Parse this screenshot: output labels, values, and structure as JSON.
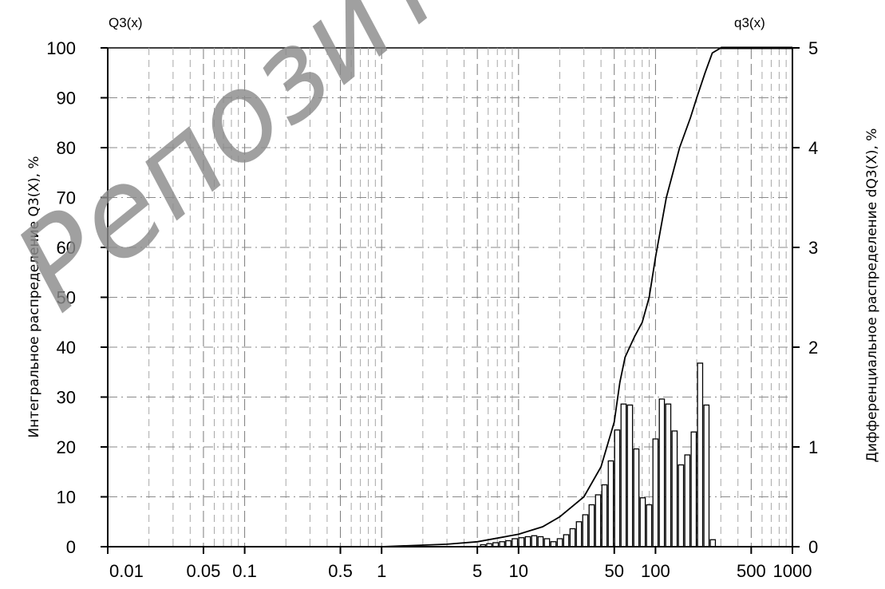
{
  "chart_data": {
    "type": "bar",
    "x_scale": "log",
    "xlim": [
      0.01,
      1000
    ],
    "x_ticks": [
      0.01,
      0.05,
      0.1,
      0.5,
      1,
      5,
      10,
      50,
      100,
      500,
      1000
    ],
    "x_tick_labels": [
      "0.01",
      "0.05",
      "0.1",
      "0.5",
      "1",
      "5",
      "10",
      "50",
      "100",
      "500",
      "1000"
    ],
    "y_left": {
      "label": "Интегральное распределение Q3(X), %",
      "corner_label": "Q3(x)",
      "ylim": [
        0,
        100
      ],
      "ticks": [
        0,
        10,
        20,
        30,
        40,
        50,
        60,
        70,
        80,
        90,
        100
      ]
    },
    "y_right": {
      "label": "Дифференциальное распределение dQ3(X), %",
      "corner_label": "q3(x)",
      "ylim": [
        0,
        5
      ],
      "ticks": [
        0,
        1,
        2,
        3,
        4,
        5
      ]
    },
    "grid": true,
    "series": [
      {
        "type": "line",
        "axis": "left",
        "x": [
          1,
          3,
          5,
          10,
          15,
          20,
          30,
          40,
          50,
          55,
          60,
          70,
          80,
          90,
          100,
          120,
          150,
          180,
          200,
          230,
          260,
          300,
          1000
        ],
        "y": [
          0,
          0.5,
          1,
          2.5,
          4,
          6,
          10,
          16,
          25,
          33,
          38,
          42,
          45,
          50,
          58,
          70,
          80,
          86,
          90,
          95,
          99,
          100,
          100
        ]
      },
      {
        "type": "bar",
        "axis": "right",
        "x": [
          5.5,
          6.1,
          6.8,
          7.6,
          8.4,
          9.4,
          10.5,
          11.7,
          13.0,
          14.5,
          16.1,
          18.0,
          20.0,
          22.3,
          24.8,
          27.6,
          30.7,
          34.2,
          38.1,
          42.4,
          47.2,
          52.5,
          58.5,
          65.1,
          72.5,
          80.7,
          89.8,
          100.0,
          111.3,
          123.9,
          137.9,
          153.5,
          170.9,
          190.2,
          211.7,
          235.7,
          262.3
        ],
        "y": [
          0.02,
          0.03,
          0.04,
          0.05,
          0.06,
          0.08,
          0.09,
          0.1,
          0.11,
          0.1,
          0.08,
          0.05,
          0.08,
          0.12,
          0.18,
          0.25,
          0.32,
          0.42,
          0.52,
          0.62,
          0.86,
          1.17,
          1.43,
          1.42,
          0.98,
          0.49,
          0.42,
          1.08,
          1.48,
          1.43,
          1.16,
          0.82,
          0.92,
          1.15,
          1.84,
          1.42,
          0.07
        ]
      }
    ]
  },
  "watermark": "Репозиторий"
}
